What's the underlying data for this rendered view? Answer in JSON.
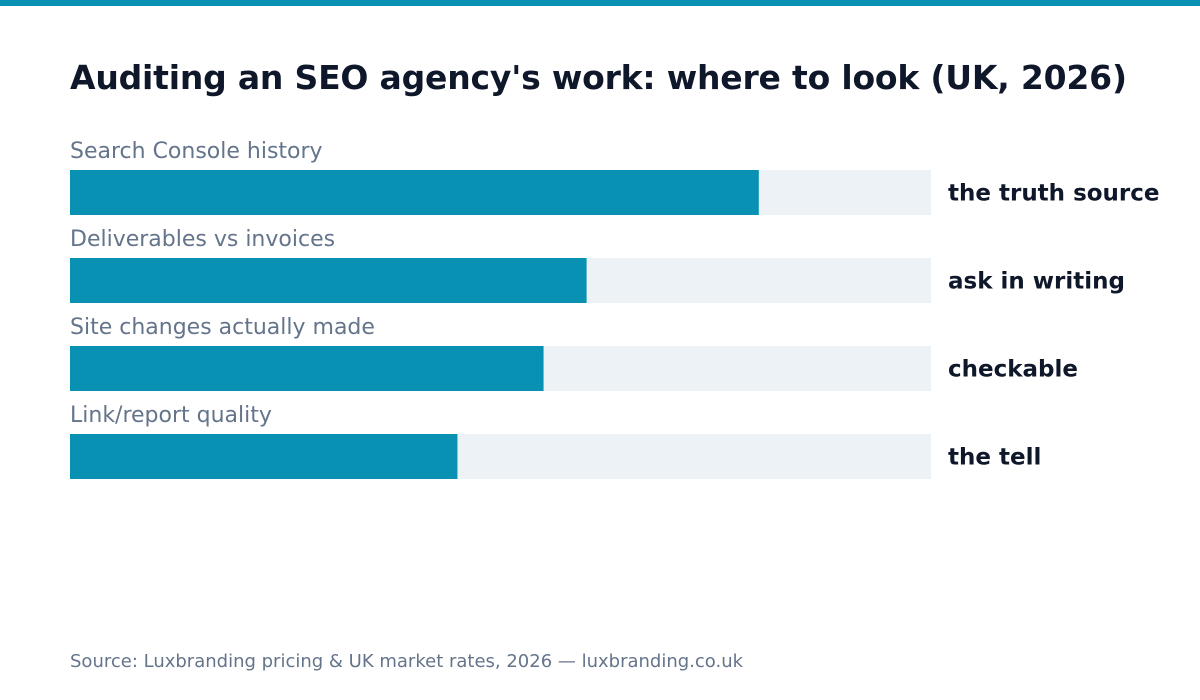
{
  "title": "Auditing an SEO agency's work: where to look (UK, 2026)",
  "source": "Source: Luxbranding pricing & UK market rates, 2026 — luxbranding.co.uk",
  "colors": {
    "accent": "#0891b2",
    "track": "#edf2f7",
    "title_text": "#0f172a",
    "muted_text": "#64748b"
  },
  "chart_data": {
    "type": "bar",
    "orientation": "horizontal",
    "title": "Auditing an SEO agency's work: where to look (UK, 2026)",
    "xlabel": "",
    "ylabel": "",
    "xlim": [
      0,
      100
    ],
    "grid": false,
    "categories": [
      "Search Console history",
      "Deliverables vs invoices",
      "Site changes actually made",
      "Link/report quality"
    ],
    "values": [
      80,
      60,
      55,
      45
    ],
    "data_labels": [
      "the truth source",
      "ask in writing",
      "checkable",
      "the tell"
    ]
  }
}
